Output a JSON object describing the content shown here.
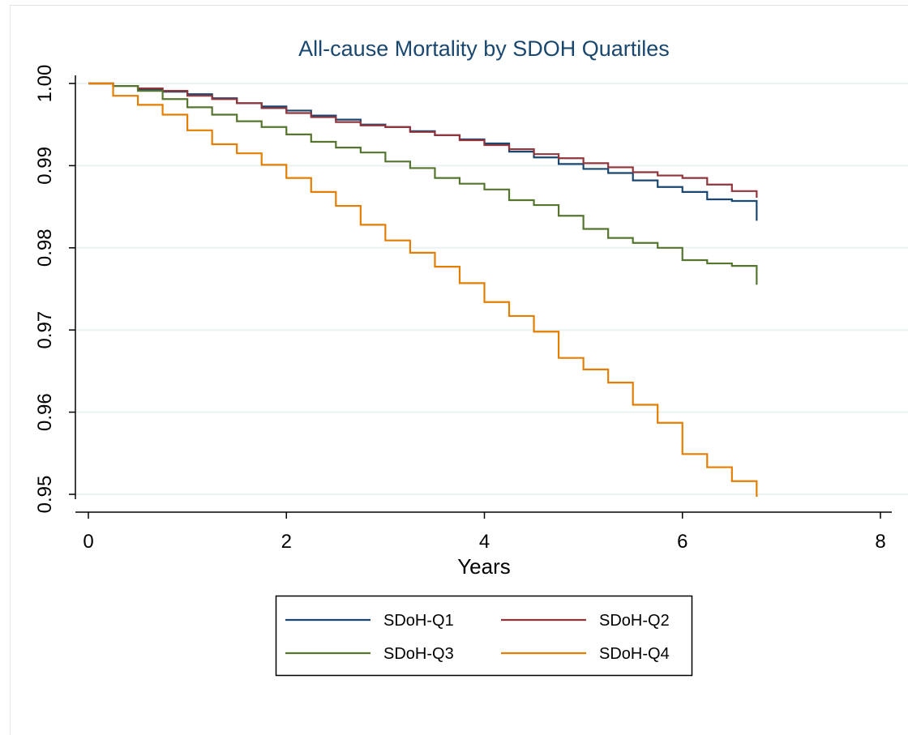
{
  "chart_data": {
    "type": "line",
    "title": "All-cause Mortality by SDOH Quartiles",
    "xlabel": "Years",
    "ylabel": "",
    "xlim": [
      0,
      8
    ],
    "ylim": [
      0.95,
      1.0
    ],
    "xticks": [
      "0",
      "2",
      "4",
      "6",
      "8"
    ],
    "yticks": [
      "0.95",
      "0.96",
      "0.97",
      "0.98",
      "0.99",
      "1.00"
    ],
    "grid": "horizontal",
    "legend_position": "bottom",
    "step": true,
    "series": [
      {
        "name": "SDoH-Q1",
        "color": "#1a476f",
        "x": [
          0,
          0.25,
          0.5,
          0.75,
          1.0,
          1.25,
          1.5,
          1.75,
          2.0,
          2.25,
          2.5,
          2.75,
          3.0,
          3.25,
          3.5,
          3.75,
          4.0,
          4.25,
          4.5,
          4.75,
          5.0,
          5.25,
          5.5,
          5.75,
          6.0,
          6.25,
          6.5,
          6.75
        ],
        "y": [
          1.0,
          0.9997,
          0.9993,
          0.999,
          0.9987,
          0.9982,
          0.9976,
          0.9972,
          0.9967,
          0.9961,
          0.9956,
          0.995,
          0.9947,
          0.9942,
          0.9937,
          0.9932,
          0.9927,
          0.9917,
          0.991,
          0.9902,
          0.9896,
          0.9891,
          0.9882,
          0.9874,
          0.9868,
          0.9859,
          0.9857,
          0.9845
        ]
      },
      {
        "name": "SDoH-Q2",
        "color": "#90353b",
        "x": [
          0,
          0.25,
          0.5,
          0.75,
          1.0,
          1.25,
          1.5,
          1.75,
          2.0,
          2.25,
          2.5,
          2.75,
          3.0,
          3.25,
          3.5,
          3.75,
          4.0,
          4.25,
          4.5,
          4.75,
          5.0,
          5.25,
          5.5,
          5.75,
          6.0,
          6.25,
          6.5,
          6.75
        ],
        "y": [
          1.0,
          0.9997,
          0.9994,
          0.9991,
          0.9985,
          0.9981,
          0.9976,
          0.997,
          0.9964,
          0.9959,
          0.9953,
          0.9949,
          0.9947,
          0.9941,
          0.9937,
          0.9931,
          0.9925,
          0.992,
          0.9914,
          0.9909,
          0.9903,
          0.9898,
          0.9892,
          0.9888,
          0.9885,
          0.9877,
          0.9869,
          0.9867
        ]
      },
      {
        "name": "SDoH-Q3",
        "color": "#55752f",
        "x": [
          0,
          0.25,
          0.5,
          0.75,
          1.0,
          1.25,
          1.5,
          1.75,
          2.0,
          2.25,
          2.5,
          2.75,
          3.0,
          3.25,
          3.5,
          3.75,
          4.0,
          4.25,
          4.5,
          4.75,
          5.0,
          5.25,
          5.5,
          5.75,
          6.0,
          6.25,
          6.5,
          6.75
        ],
        "y": [
          1.0,
          0.9997,
          0.9991,
          0.9981,
          0.9971,
          0.9962,
          0.9954,
          0.9947,
          0.9938,
          0.9929,
          0.9922,
          0.9916,
          0.9905,
          0.9897,
          0.9885,
          0.9878,
          0.9871,
          0.9858,
          0.9852,
          0.9839,
          0.9823,
          0.9812,
          0.9806,
          0.98,
          0.9785,
          0.9781,
          0.9778,
          0.9767
        ]
      },
      {
        "name": "SDoH-Q4",
        "color": "#e37e00",
        "x": [
          0,
          0.25,
          0.5,
          0.75,
          1.0,
          1.25,
          1.5,
          1.75,
          2.0,
          2.25,
          2.5,
          2.75,
          3.0,
          3.25,
          3.5,
          3.75,
          4.0,
          4.25,
          4.5,
          4.75,
          5.0,
          5.25,
          5.5,
          5.75,
          6.0,
          6.25,
          6.5,
          6.75
        ],
        "y": [
          1.0,
          0.9985,
          0.9974,
          0.9962,
          0.9943,
          0.9926,
          0.9915,
          0.9901,
          0.9885,
          0.9868,
          0.9851,
          0.9828,
          0.9809,
          0.9794,
          0.9777,
          0.9757,
          0.9734,
          0.9717,
          0.9698,
          0.9666,
          0.9652,
          0.9636,
          0.9609,
          0.9587,
          0.9549,
          0.9533,
          0.9516,
          0.9503
        ]
      }
    ]
  }
}
